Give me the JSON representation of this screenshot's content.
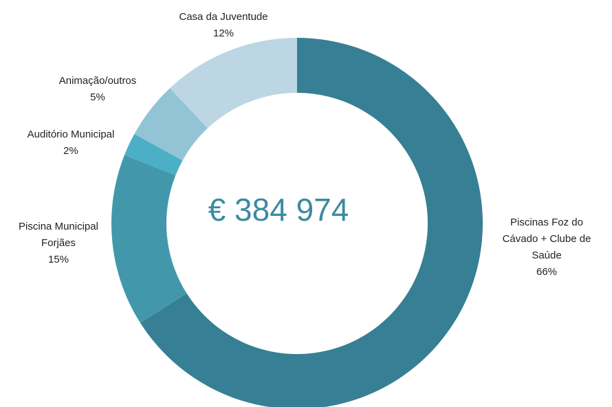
{
  "chart_data": {
    "type": "donut",
    "center_label": "€ 384 974",
    "categories": [
      "Piscinas Foz do Cávado + Clube de Saúde",
      "Piscina Municipal Forjães",
      "Auditório Municipal",
      "Animação/outros",
      "Casa da Juventude"
    ],
    "values": [
      66,
      15,
      2,
      5,
      12
    ],
    "value_labels": [
      "66%",
      "15%",
      "2%",
      "5%",
      "12%"
    ],
    "colors": [
      "#377f94",
      "#4397ab",
      "#4bafc6",
      "#93c4d5",
      "#bcd7e3"
    ]
  }
}
